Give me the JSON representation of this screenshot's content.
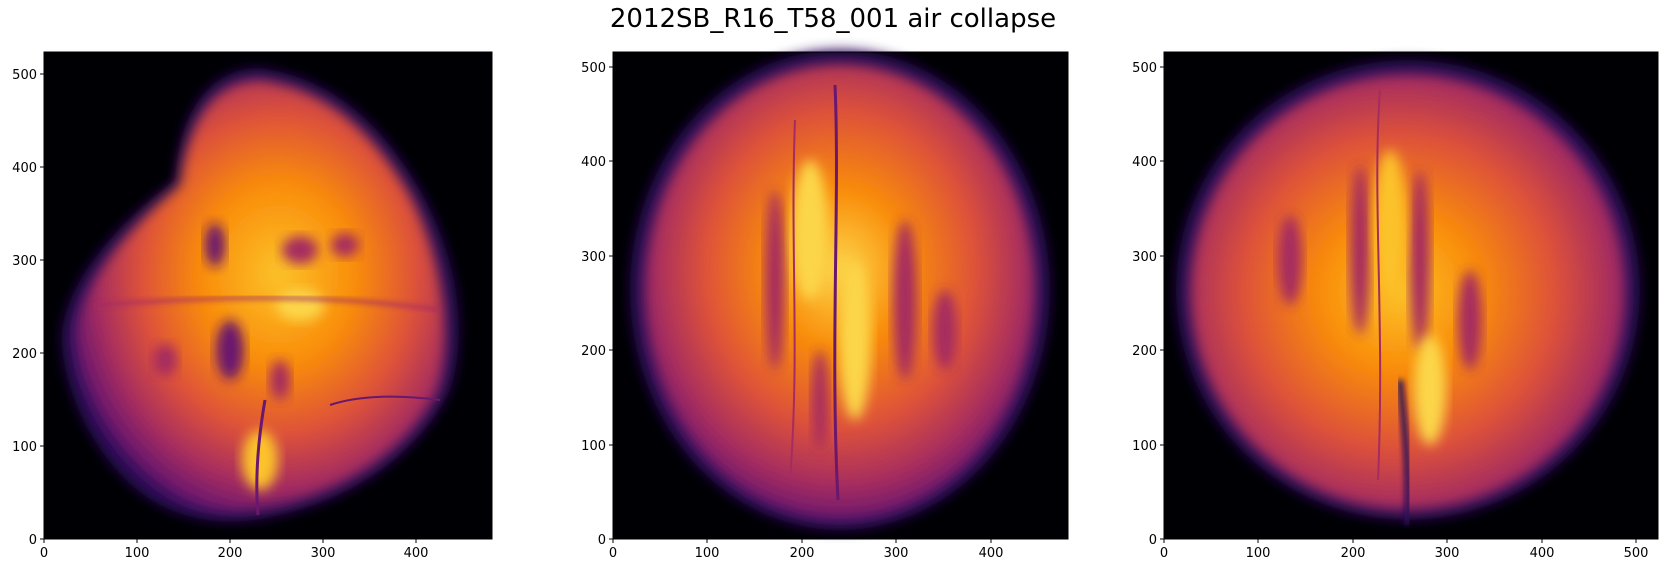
{
  "figure": {
    "title": "2012SB_R16_T58_001 air collapse"
  },
  "colormap": {
    "name": "inferno",
    "stops": [
      "#000004",
      "#2b0b57",
      "#6a176e",
      "#a52c60",
      "#dd513a",
      "#f98c0a",
      "#fcc229",
      "#fcffa4"
    ]
  },
  "panels": [
    {
      "name": "panel-1",
      "xlim": [
        0,
        482
      ],
      "ylim": [
        0,
        523
      ],
      "x_ticks": [
        "0",
        "100",
        "200",
        "300",
        "400"
      ],
      "y_ticks": [
        "0",
        "100",
        "200",
        "300",
        "400",
        "500"
      ]
    },
    {
      "name": "panel-2",
      "xlim": [
        0,
        482
      ],
      "ylim": [
        0,
        516
      ],
      "x_ticks": [
        "0",
        "100",
        "200",
        "300",
        "400"
      ],
      "y_ticks": [
        "0",
        "100",
        "200",
        "300",
        "400",
        "500"
      ]
    },
    {
      "name": "panel-3",
      "xlim": [
        0,
        522
      ],
      "ylim": [
        0,
        516
      ],
      "x_ticks": [
        "0",
        "100",
        "200",
        "300",
        "400",
        "500"
      ],
      "y_ticks": [
        "0",
        "100",
        "200",
        "300",
        "400",
        "500"
      ]
    }
  ]
}
